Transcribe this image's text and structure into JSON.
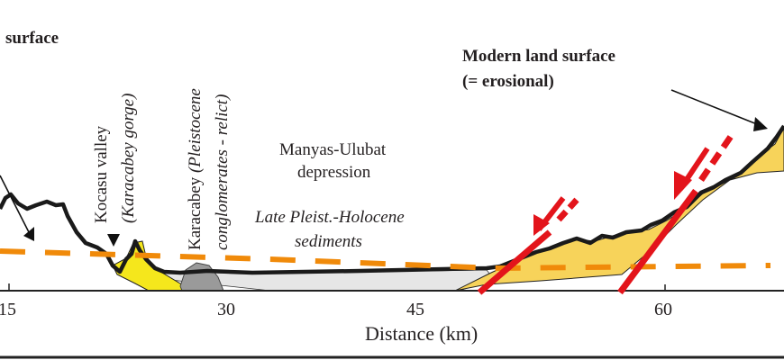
{
  "labels": {
    "surface_left": "surface",
    "modern_land_surface": "Modern land surface",
    "erosional": "(= erosional)",
    "depression_line1": "Manyas-Ulubat",
    "depression_line2": "depression",
    "sediments_line1": "Late Pleist.-Holocene",
    "sediments_line2": "sediments",
    "kocasu": "Kocasu valley",
    "karacabey_gorge": "(Karacabey gorge)",
    "karacabey": "Karacabey ",
    "karacabey_paren": "(Pleistocene",
    "conglomerates": "conglomerates - relict)"
  },
  "axis": {
    "xlabel": "Distance (km)",
    "ticks": [
      "15",
      "30",
      "45",
      "60"
    ]
  },
  "colors": {
    "terrain": "#1a1a1a",
    "sediment_yellow": "#f7d35a",
    "gorge_yellow": "#f5e71c",
    "conglomerate_gray": "#9a9a9a",
    "basin_fill": "#e6e6e6",
    "reference_dashed": "#f08a0a",
    "fault": "#e3141b"
  }
}
